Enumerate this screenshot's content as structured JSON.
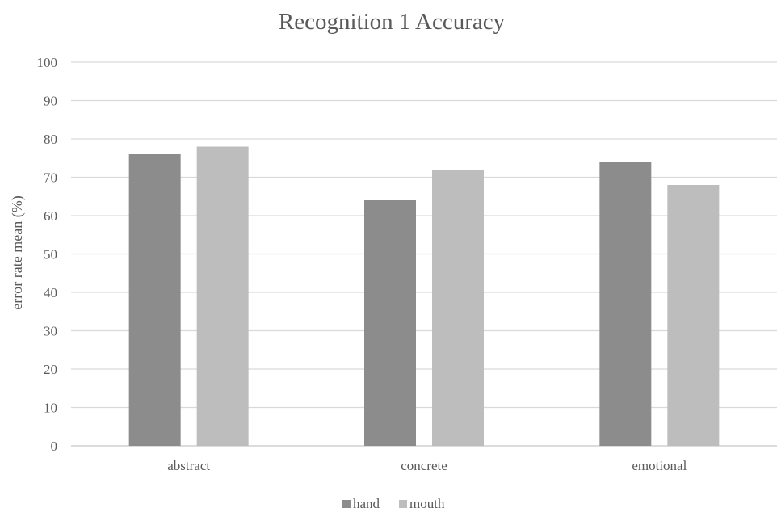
{
  "chart_data": {
    "type": "bar",
    "title": "Recognition 1 Accuracy",
    "xlabel": "",
    "ylabel": "error rate mean (%)",
    "categories": [
      "abstract",
      "concrete",
      "emotional"
    ],
    "series": [
      {
        "name": "hand",
        "values": [
          76,
          64,
          74
        ],
        "color": "#8c8c8c"
      },
      {
        "name": "mouth",
        "values": [
          78,
          72,
          68
        ],
        "color": "#bdbdbd"
      }
    ],
    "ylim": [
      0,
      100
    ],
    "yticks": [
      0,
      10,
      20,
      30,
      40,
      50,
      60,
      70,
      80,
      90,
      100
    ],
    "grid": true,
    "legend": "bottom"
  }
}
